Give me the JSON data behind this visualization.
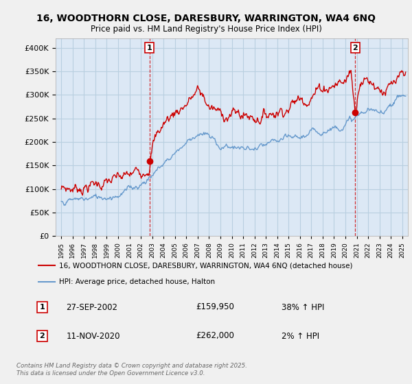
{
  "title1": "16, WOODTHORN CLOSE, DARESBURY, WARRINGTON, WA4 6NQ",
  "title2": "Price paid vs. HM Land Registry's House Price Index (HPI)",
  "legend_label_red": "16, WOODTHORN CLOSE, DARESBURY, WARRINGTON, WA4 6NQ (detached house)",
  "legend_label_blue": "HPI: Average price, detached house, Halton",
  "annotation1_date": "27-SEP-2002",
  "annotation1_price": "£159,950",
  "annotation1_hpi": "38% ↑ HPI",
  "annotation2_date": "11-NOV-2020",
  "annotation2_price": "£262,000",
  "annotation2_hpi": "2% ↑ HPI",
  "footer": "Contains HM Land Registry data © Crown copyright and database right 2025.\nThis data is licensed under the Open Government Licence v3.0.",
  "ylim": [
    0,
    420000
  ],
  "yticks": [
    0,
    50000,
    100000,
    150000,
    200000,
    250000,
    300000,
    350000,
    400000
  ],
  "red_color": "#cc0000",
  "blue_color": "#6699cc",
  "background_color": "#f0f0f0",
  "plot_background": "#dce8f5",
  "grid_color": "#b8cfe0",
  "sale1_year": 2002.75,
  "sale1_price": 159950,
  "sale2_year": 2020.87,
  "sale2_price": 262000,
  "red_knots_x": [
    1995,
    1996,
    1997,
    1998,
    1999,
    2000,
    2001,
    2002,
    2002.75,
    2003,
    2004,
    2005,
    2006,
    2007,
    2007.5,
    2008,
    2009,
    2010,
    2011,
    2012,
    2013,
    2014,
    2015,
    2016,
    2017,
    2018,
    2019,
    2020,
    2020.5,
    2020.87,
    2021,
    2021.3,
    2022,
    2022.5,
    2023,
    2023.5,
    2024,
    2024.5,
    2025
  ],
  "red_knots_y": [
    100000,
    102000,
    108000,
    112000,
    115000,
    118000,
    125000,
    140000,
    159950,
    200000,
    240000,
    265000,
    285000,
    308000,
    295000,
    275000,
    258000,
    262000,
    258000,
    255000,
    260000,
    270000,
    280000,
    292000,
    305000,
    318000,
    325000,
    330000,
    355000,
    262000,
    295000,
    345000,
    335000,
    330000,
    320000,
    315000,
    315000,
    320000,
    328000
  ],
  "blue_knots_x": [
    1995,
    1996,
    1997,
    1998,
    1999,
    2000,
    2001,
    2002,
    2003,
    2004,
    2005,
    2006,
    2007,
    2008,
    2009,
    2010,
    2011,
    2012,
    2013,
    2014,
    2015,
    2016,
    2017,
    2018,
    2019,
    2020,
    2021,
    2022,
    2023,
    2024,
    2025
  ],
  "blue_knots_y": [
    74000,
    76000,
    79000,
    82000,
    85000,
    90000,
    100000,
    112000,
    130000,
    155000,
    178000,
    200000,
    220000,
    210000,
    190000,
    192000,
    185000,
    183000,
    190000,
    200000,
    205000,
    210000,
    218000,
    225000,
    232000,
    240000,
    252000,
    268000,
    258000,
    285000,
    300000
  ]
}
